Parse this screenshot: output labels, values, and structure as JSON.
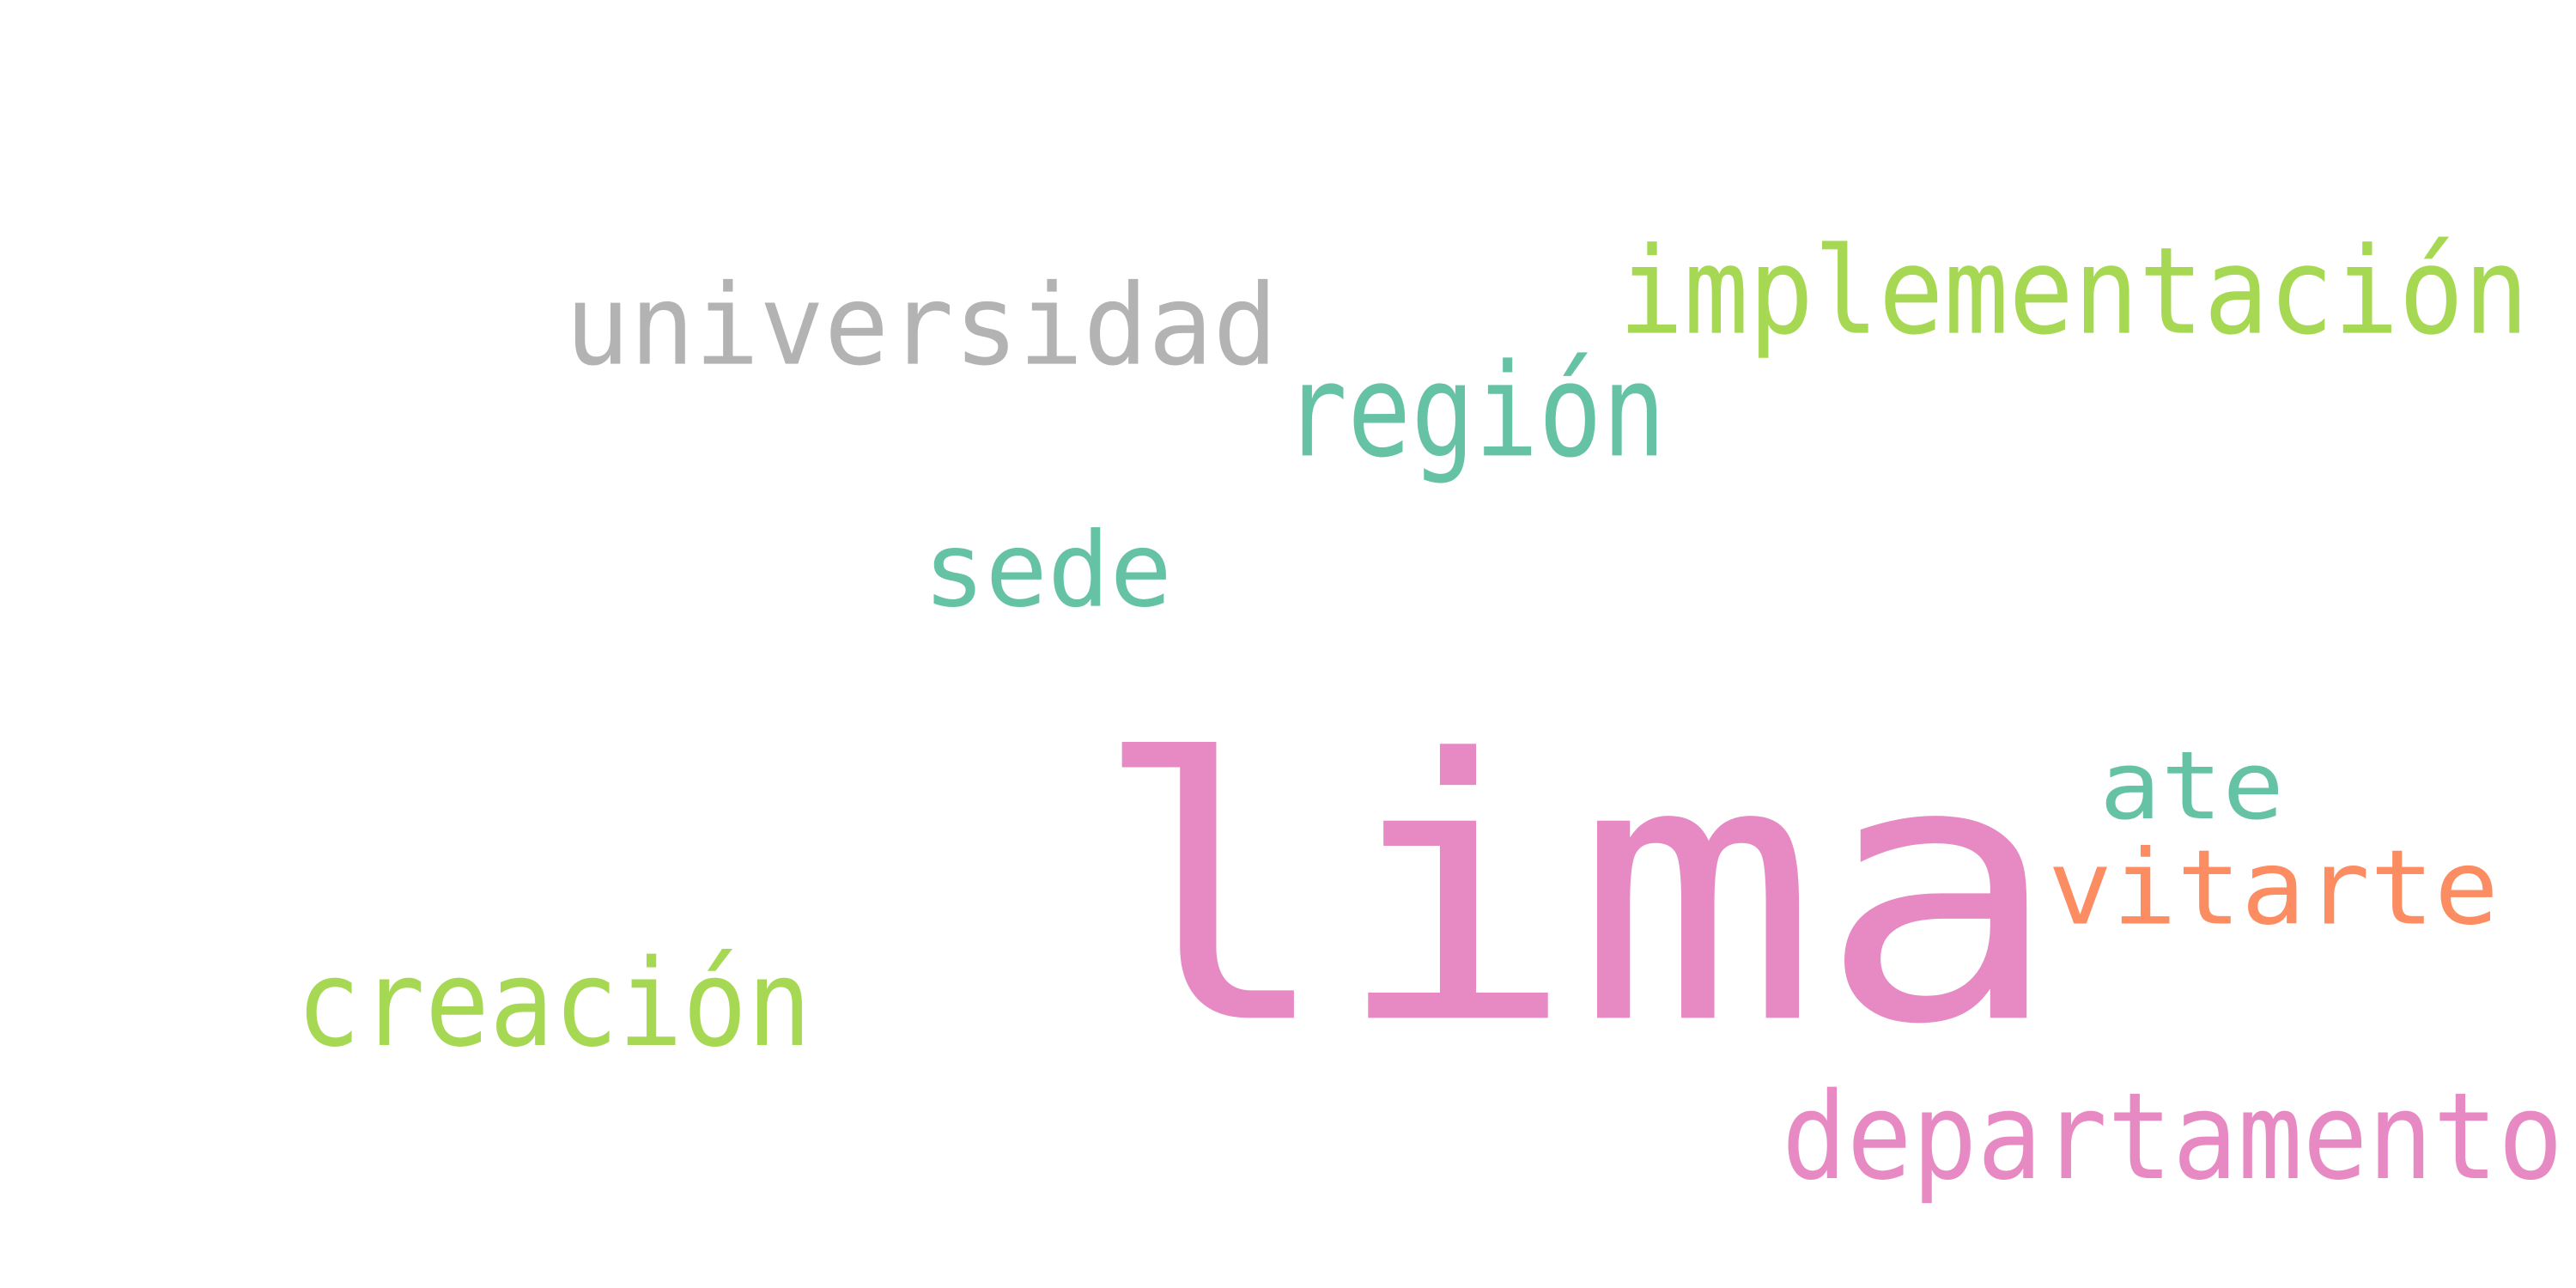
{
  "word_cloud": {
    "background": "#ffffff",
    "words": [
      {
        "key": "lima",
        "text": "lima",
        "color": "#e78ac3"
      },
      {
        "key": "implementacion",
        "text": "implementación",
        "color": "#a6d854"
      },
      {
        "key": "universidad",
        "text": "universidad",
        "color": "#b3b3b3"
      },
      {
        "key": "region",
        "text": "región",
        "color": "#66c2a5"
      },
      {
        "key": "sede",
        "text": "sede",
        "color": "#66c2a5"
      },
      {
        "key": "ate",
        "text": "ate",
        "color": "#66c2a5"
      },
      {
        "key": "vitarte",
        "text": "vitarte",
        "color": "#fc8d62"
      },
      {
        "key": "creacion",
        "text": "creación",
        "color": "#a6d854"
      },
      {
        "key": "departamento",
        "text": "departamento",
        "color": "#e78ac3"
      }
    ]
  }
}
